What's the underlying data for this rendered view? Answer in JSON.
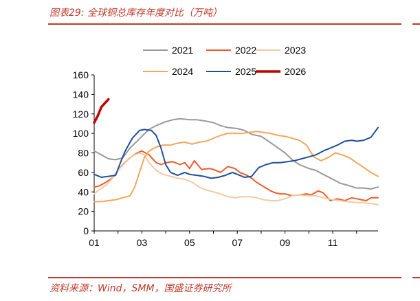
{
  "header": {
    "title": "图表29:  全球铜总库存年度对比（万吨）"
  },
  "footer": {
    "source": "资料来源：Wind，SMM，国盛证券研究所"
  },
  "chart_data": {
    "type": "line",
    "title": "图表29:  全球铜总库存年度对比（万吨）",
    "xlabel": "",
    "ylabel": "",
    "xlim": [
      1,
      12.9
    ],
    "ylim": [
      0,
      160
    ],
    "yticks": [
      0,
      20,
      40,
      60,
      80,
      100,
      120,
      140,
      160
    ],
    "xticks": [
      1,
      3,
      5,
      7,
      9,
      11
    ],
    "xtick_labels": [
      "01",
      "03",
      "05",
      "07",
      "09",
      "11"
    ],
    "legend_position": "top",
    "series": [
      {
        "name": "2021",
        "color": "#999999",
        "x": [
          1,
          1.3,
          1.6,
          1.9,
          2.2,
          2.5,
          2.8,
          3,
          3.3,
          3.6,
          4,
          4.3,
          4.6,
          5,
          5.3,
          5.6,
          6,
          6.3,
          6.6,
          7,
          7.3,
          7.6,
          8,
          8.3,
          8.6,
          9,
          9.3,
          9.6,
          10,
          10.3,
          10.6,
          11,
          11.3,
          11.6,
          12,
          12.3,
          12.6,
          12.9
        ],
        "y": [
          82,
          78,
          74,
          73,
          75,
          85,
          92,
          97,
          104,
          108,
          112,
          114,
          115,
          114,
          114,
          113,
          111,
          108,
          106,
          105,
          103,
          99,
          97,
          92,
          87,
          80,
          73,
          68,
          64,
          62,
          58,
          53,
          49,
          47,
          44,
          44,
          43,
          45
        ]
      },
      {
        "name": "2022",
        "color": "#f05a28",
        "x": [
          1,
          1.2,
          1.5,
          1.8,
          2,
          2.2,
          2.5,
          2.8,
          3,
          3.3,
          3.6,
          3.8,
          4,
          4.3,
          4.6,
          4.8,
          5,
          5.2,
          5.5,
          5.8,
          6,
          6.3,
          6.6,
          6.9,
          7.1,
          7.4,
          7.6,
          7.8,
          8,
          8.2,
          8.4,
          8.6,
          8.8,
          9,
          9.3,
          9.6,
          9.9,
          10.1,
          10.4,
          10.6,
          10.9,
          11.2,
          11.5,
          11.8,
          12,
          12.2,
          12.4,
          12.6,
          12.8,
          12.9
        ],
        "y": [
          45,
          46,
          50,
          55,
          62,
          68,
          75,
          80,
          82,
          78,
          70,
          68,
          70,
          71,
          68,
          70,
          64,
          72,
          63,
          64,
          63,
          60,
          66,
          64,
          60,
          57,
          54,
          50,
          47,
          44,
          41,
          39,
          38,
          38,
          36,
          37,
          38,
          37,
          41,
          39,
          31,
          33,
          31,
          34,
          33,
          32,
          31,
          34,
          34,
          34
        ]
      },
      {
        "name": "2023",
        "color": "#f4c9a2",
        "x": [
          1,
          1.2,
          1.5,
          1.8,
          2,
          2.3,
          2.6,
          2.9,
          3.1,
          3.3,
          3.6,
          3.9,
          4.2,
          4.5,
          4.8,
          5.1,
          5.4,
          5.7,
          6,
          6.3,
          6.6,
          6.9,
          7.2,
          7.5,
          7.8,
          8.1,
          8.4,
          8.7,
          9,
          9.3,
          9.6,
          10,
          10.3,
          10.6,
          11,
          11.3,
          11.6,
          12,
          12.3,
          12.6,
          12.9
        ],
        "y": [
          38,
          42,
          47,
          55,
          62,
          70,
          77,
          80,
          78,
          70,
          62,
          58,
          56,
          54,
          53,
          50,
          45,
          42,
          40,
          38,
          35,
          34,
          35,
          35,
          34,
          32,
          31,
          31,
          33,
          36,
          37,
          36,
          36,
          34,
          32,
          31,
          30,
          29,
          29,
          28,
          27
        ]
      },
      {
        "name": "2024",
        "color": "#f7a45a",
        "x": [
          1,
          1.3,
          1.6,
          1.9,
          2.2,
          2.5,
          2.7,
          2.9,
          3.1,
          3.3,
          3.6,
          3.9,
          4.2,
          4.5,
          4.8,
          5.1,
          5.4,
          5.7,
          6,
          6.3,
          6.6,
          6.9,
          7.2,
          7.5,
          7.8,
          8.1,
          8.4,
          8.7,
          9,
          9.3,
          9.6,
          9.9,
          10.2,
          10.5,
          10.8,
          11.1,
          11.4,
          11.7,
          12,
          12.3,
          12.6,
          12.9
        ],
        "y": [
          30,
          30,
          31,
          32,
          34,
          36,
          45,
          60,
          75,
          82,
          86,
          88,
          88,
          90,
          91,
          89,
          91,
          92,
          95,
          98,
          100,
          100,
          100,
          101,
          102,
          101,
          100,
          98,
          97,
          95,
          93,
          88,
          76,
          72,
          75,
          80,
          78,
          75,
          70,
          65,
          60,
          56
        ]
      },
      {
        "name": "2025",
        "color": "#1f4e9c",
        "x": [
          1,
          1.3,
          1.6,
          1.9,
          2.1,
          2.3,
          2.6,
          2.9,
          3.1,
          3.4,
          3.6,
          3.8,
          4,
          4.2,
          4.5,
          4.8,
          5,
          5.3,
          5.6,
          5.9,
          6.2,
          6.5,
          6.8,
          7,
          7.3,
          7.6,
          7.9,
          8.2,
          8.5,
          8.8,
          9.1,
          9.4,
          9.7,
          10,
          10.3,
          10.6,
          10.9,
          11.2,
          11.5,
          11.8,
          12,
          12.3,
          12.6,
          12.9
        ],
        "y": [
          58,
          55,
          56,
          57,
          70,
          82,
          95,
          103,
          104,
          103,
          98,
          85,
          68,
          60,
          57,
          60,
          58,
          57,
          56,
          54,
          55,
          57,
          60,
          58,
          55,
          56,
          65,
          68,
          70,
          70,
          71,
          72,
          74,
          76,
          78,
          82,
          85,
          88,
          92,
          93,
          92,
          93,
          96,
          106
        ]
      },
      {
        "name": "2026",
        "color": "#c00000",
        "x": [
          1,
          1.15,
          1.3,
          1.45,
          1.6
        ],
        "y": [
          111,
          118,
          127,
          131,
          135
        ]
      }
    ]
  }
}
